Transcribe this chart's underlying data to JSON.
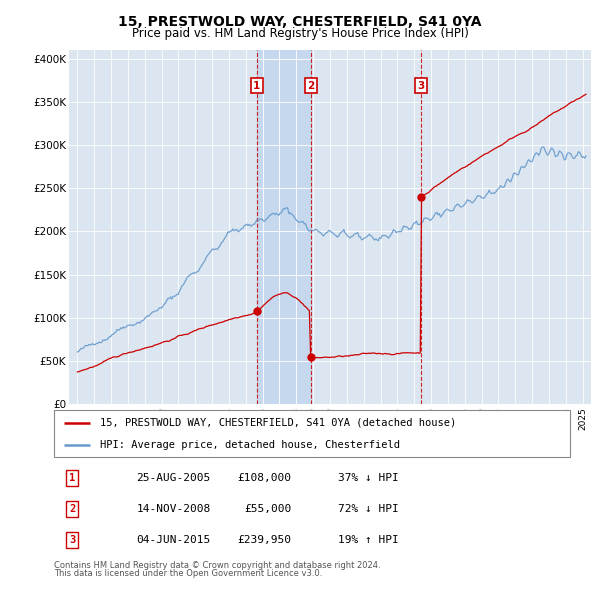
{
  "title1": "15, PRESTWOLD WAY, CHESTERFIELD, S41 0YA",
  "title2": "Price paid vs. HM Land Registry's House Price Index (HPI)",
  "ylabel_ticks": [
    "£0",
    "£50K",
    "£100K",
    "£150K",
    "£200K",
    "£250K",
    "£300K",
    "£350K",
    "£400K"
  ],
  "ytick_values": [
    0,
    50000,
    100000,
    150000,
    200000,
    250000,
    300000,
    350000,
    400000
  ],
  "xlim_start": 1994.5,
  "xlim_end": 2025.5,
  "ylim_min": 0,
  "ylim_max": 410000,
  "background_color": "#dce6f1",
  "sale_color": "#cc0000",
  "hpi_color": "#6699cc",
  "shade_color": "#c5d8ed",
  "transactions": [
    {
      "label": "1",
      "date": 2005.65,
      "price": 108000
    },
    {
      "label": "2",
      "date": 2008.88,
      "price": 55000
    },
    {
      "label": "3",
      "date": 2015.42,
      "price": 239950
    }
  ],
  "legend_sale": "15, PRESTWOLD WAY, CHESTERFIELD, S41 0YA (detached house)",
  "legend_hpi": "HPI: Average price, detached house, Chesterfield",
  "table_rows": [
    {
      "num": "1",
      "date": "25-AUG-2005",
      "price": "£108,000",
      "hpi": "37% ↓ HPI"
    },
    {
      "num": "2",
      "date": "14-NOV-2008",
      "price": "£55,000",
      "hpi": "72% ↓ HPI"
    },
    {
      "num": "3",
      "date": "04-JUN-2015",
      "price": "£239,950",
      "hpi": "19% ↑ HPI"
    }
  ],
  "footnote1": "Contains HM Land Registry data © Crown copyright and database right 2024.",
  "footnote2": "This data is licensed under the Open Government Licence v3.0."
}
